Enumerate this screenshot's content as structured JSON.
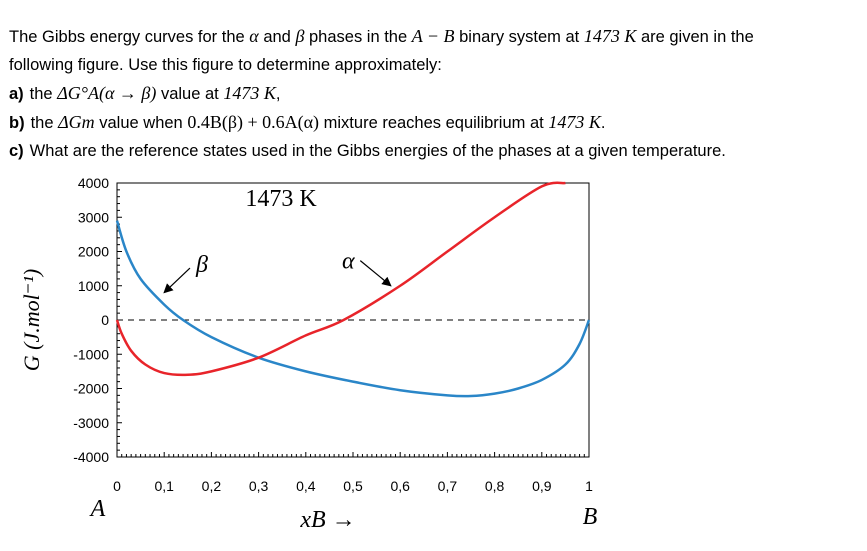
{
  "question": {
    "intro_1": "The Gibbs energy curves for the ",
    "alpha": "α",
    "and": " and ",
    "beta": "β",
    "intro_2": " phases in the ",
    "system": "A − B",
    "intro_3": " binary system at ",
    "temperature": "1473 K",
    "intro_4": " are given in the",
    "intro_line2": "following figure. Use this figure to determine approximately:",
    "items": [
      {
        "label": "a)",
        "text_1": "the ",
        "math": "ΔG°A(α → β)",
        "text_2": " value at ",
        "math2": "1473 K",
        "text_3": ","
      },
      {
        "label": "b)",
        "text_1": "the ",
        "math": "ΔGm",
        "text_2": " value when ",
        "math2": "0.4B(β) + 0.6A(α)",
        "text_3": " mixture reaches equilibrium at ",
        "math3": "1473 K",
        "text_4": "."
      },
      {
        "label": "c)",
        "text_1": "What are the reference states used in the Gibbs energies of the phases at a given temperature."
      }
    ]
  },
  "chart_data": {
    "type": "line",
    "title": "1473 K",
    "xlabel": "xB →",
    "ylabel": "G (J.mol⁻¹)",
    "x_end_labels": {
      "left": "A",
      "right": "B"
    },
    "xlim": [
      0,
      1
    ],
    "ylim": [
      -4000,
      4000
    ],
    "x_ticks": [
      "0",
      "0,1",
      "0,2",
      "0,3",
      "0,4",
      "0,5",
      "0,6",
      "0,7",
      "0,8",
      "0,9",
      "1"
    ],
    "y_ticks": [
      "4000",
      "3000",
      "2000",
      "1000",
      "0",
      "-1000",
      "-2000",
      "-3000",
      "-4000"
    ],
    "reference_line": {
      "y": 0,
      "style": "dashed"
    },
    "series": [
      {
        "name": "β",
        "color": "#2a86c8",
        "x": [
          0,
          0.02,
          0.05,
          0.1,
          0.14,
          0.2,
          0.3,
          0.4,
          0.5,
          0.6,
          0.7,
          0.75,
          0.8,
          0.85,
          0.9,
          0.95,
          0.98,
          1.0
        ],
        "y": [
          2900,
          2000,
          1200,
          450,
          0,
          -500,
          -1100,
          -1500,
          -1800,
          -2050,
          -2200,
          -2220,
          -2150,
          -2000,
          -1750,
          -1300,
          -700,
          0
        ]
      },
      {
        "name": "α",
        "color": "#e8242a",
        "x": [
          0,
          0.01,
          0.03,
          0.06,
          0.1,
          0.15,
          0.2,
          0.3,
          0.4,
          0.48,
          0.6,
          0.7,
          0.8,
          0.9,
          0.95
        ],
        "y": [
          0,
          -400,
          -900,
          -1300,
          -1550,
          -1600,
          -1500,
          -1100,
          -450,
          0,
          1000,
          2000,
          3000,
          3900,
          4000
        ]
      }
    ],
    "annotations": [
      {
        "text": "β",
        "x": 0.18,
        "y": 1400,
        "arrow_to": [
          0.1,
          800
        ]
      },
      {
        "text": "α",
        "x": 0.49,
        "y": 1500,
        "arrow_to": [
          0.58,
          1000
        ]
      }
    ]
  }
}
